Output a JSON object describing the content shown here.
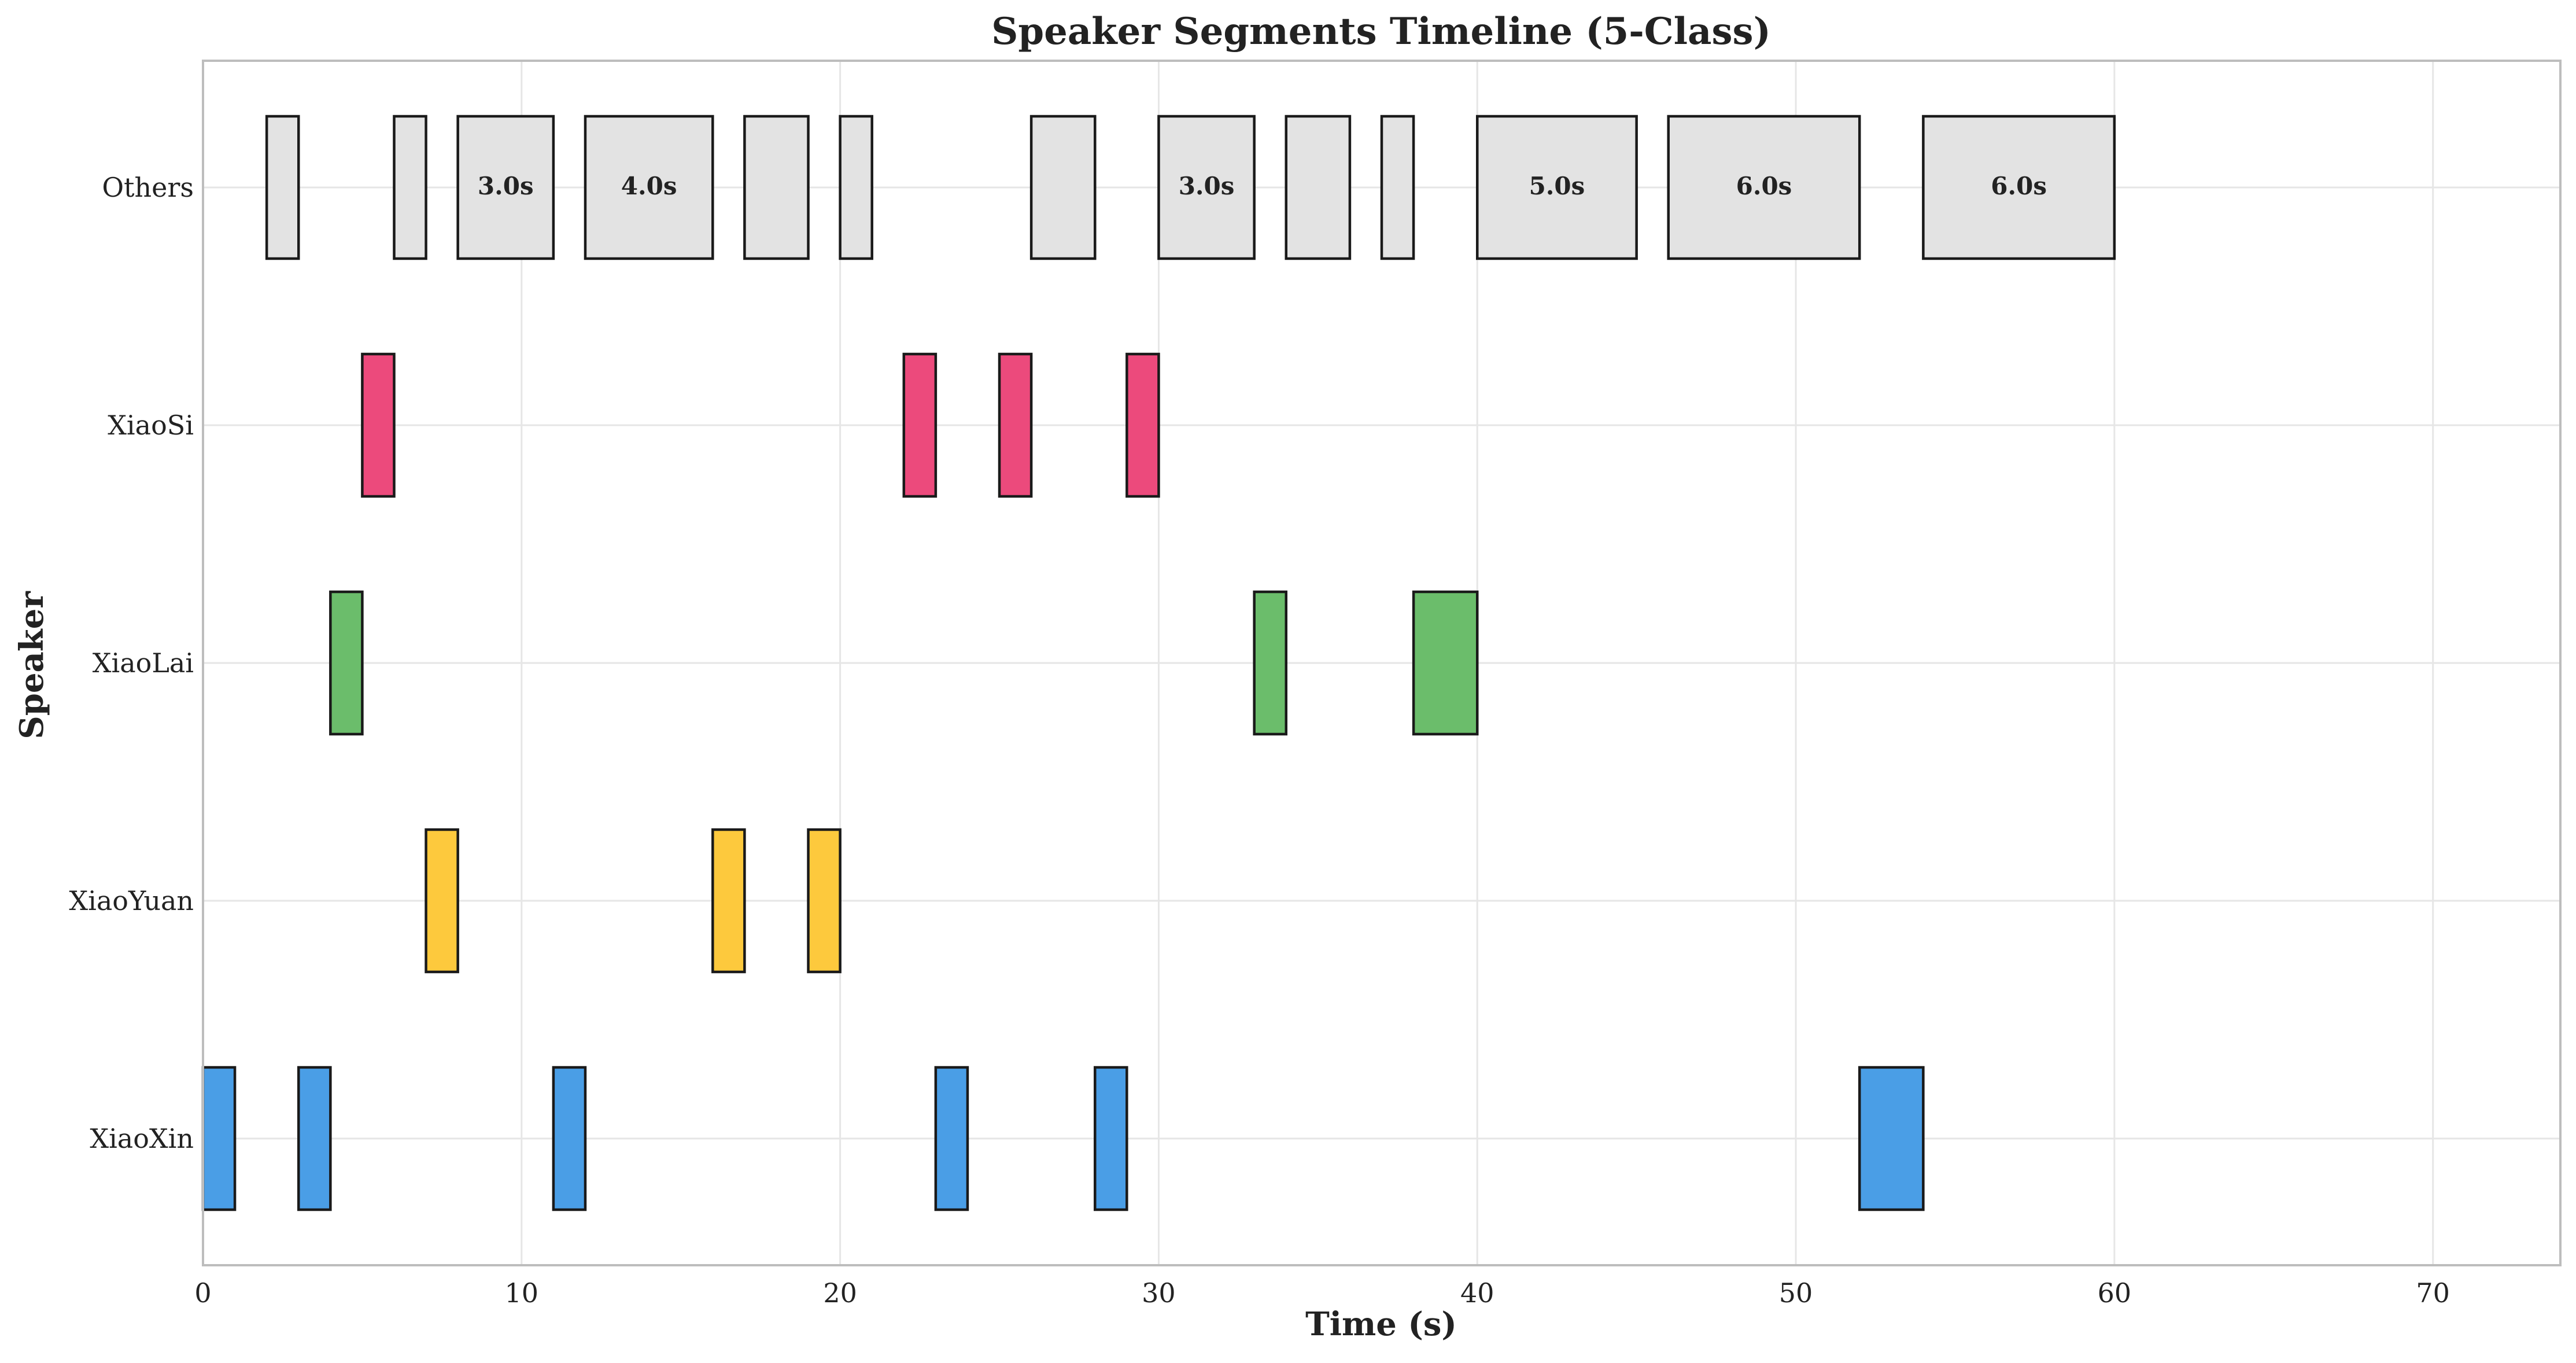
{
  "chart_data": {
    "type": "timeline",
    "title": "Speaker Segments Timeline (5-Class)",
    "xlabel": "Time (s)",
    "ylabel": "Speaker",
    "xlim": [
      0,
      74
    ],
    "xticks": [
      0,
      10,
      20,
      30,
      40,
      50,
      60,
      70
    ],
    "grid": true,
    "categories": [
      "Others",
      "XiaoSi",
      "XiaoLai",
      "XiaoYuan",
      "XiaoXin"
    ],
    "colors": {
      "Others": "#e3e3e3",
      "XiaoSi": "#ec4a7c",
      "XiaoLai": "#6bbd6b",
      "XiaoYuan": "#fdc93d",
      "XiaoXin": "#4a9ee6"
    },
    "segments": [
      {
        "speaker": "XiaoXin",
        "start": 0,
        "end": 1
      },
      {
        "speaker": "Others",
        "start": 2,
        "end": 3
      },
      {
        "speaker": "XiaoXin",
        "start": 3,
        "end": 4
      },
      {
        "speaker": "XiaoLai",
        "start": 4,
        "end": 5
      },
      {
        "speaker": "XiaoSi",
        "start": 5,
        "end": 6
      },
      {
        "speaker": "Others",
        "start": 6,
        "end": 7
      },
      {
        "speaker": "XiaoYuan",
        "start": 7,
        "end": 8
      },
      {
        "speaker": "Others",
        "start": 8,
        "end": 11,
        "label": "3.0s"
      },
      {
        "speaker": "XiaoXin",
        "start": 11,
        "end": 12
      },
      {
        "speaker": "Others",
        "start": 12,
        "end": 16,
        "label": "4.0s"
      },
      {
        "speaker": "XiaoYuan",
        "start": 16,
        "end": 17
      },
      {
        "speaker": "Others",
        "start": 17,
        "end": 19
      },
      {
        "speaker": "XiaoYuan",
        "start": 19,
        "end": 20
      },
      {
        "speaker": "Others",
        "start": 20,
        "end": 21
      },
      {
        "speaker": "XiaoSi",
        "start": 22,
        "end": 23
      },
      {
        "speaker": "XiaoXin",
        "start": 23,
        "end": 24
      },
      {
        "speaker": "XiaoSi",
        "start": 25,
        "end": 26
      },
      {
        "speaker": "Others",
        "start": 26,
        "end": 28
      },
      {
        "speaker": "XiaoXin",
        "start": 28,
        "end": 29
      },
      {
        "speaker": "XiaoSi",
        "start": 29,
        "end": 30
      },
      {
        "speaker": "Others",
        "start": 30,
        "end": 33,
        "label": "3.0s"
      },
      {
        "speaker": "XiaoLai",
        "start": 33,
        "end": 34
      },
      {
        "speaker": "Others",
        "start": 34,
        "end": 36
      },
      {
        "speaker": "Others",
        "start": 37,
        "end": 38
      },
      {
        "speaker": "XiaoLai",
        "start": 38,
        "end": 40
      },
      {
        "speaker": "Others",
        "start": 40,
        "end": 45,
        "label": "5.0s"
      },
      {
        "speaker": "Others",
        "start": 46,
        "end": 52,
        "label": "6.0s"
      },
      {
        "speaker": "XiaoXin",
        "start": 52,
        "end": 54
      },
      {
        "speaker": "Others",
        "start": 54,
        "end": 60,
        "label": "6.0s"
      }
    ]
  }
}
